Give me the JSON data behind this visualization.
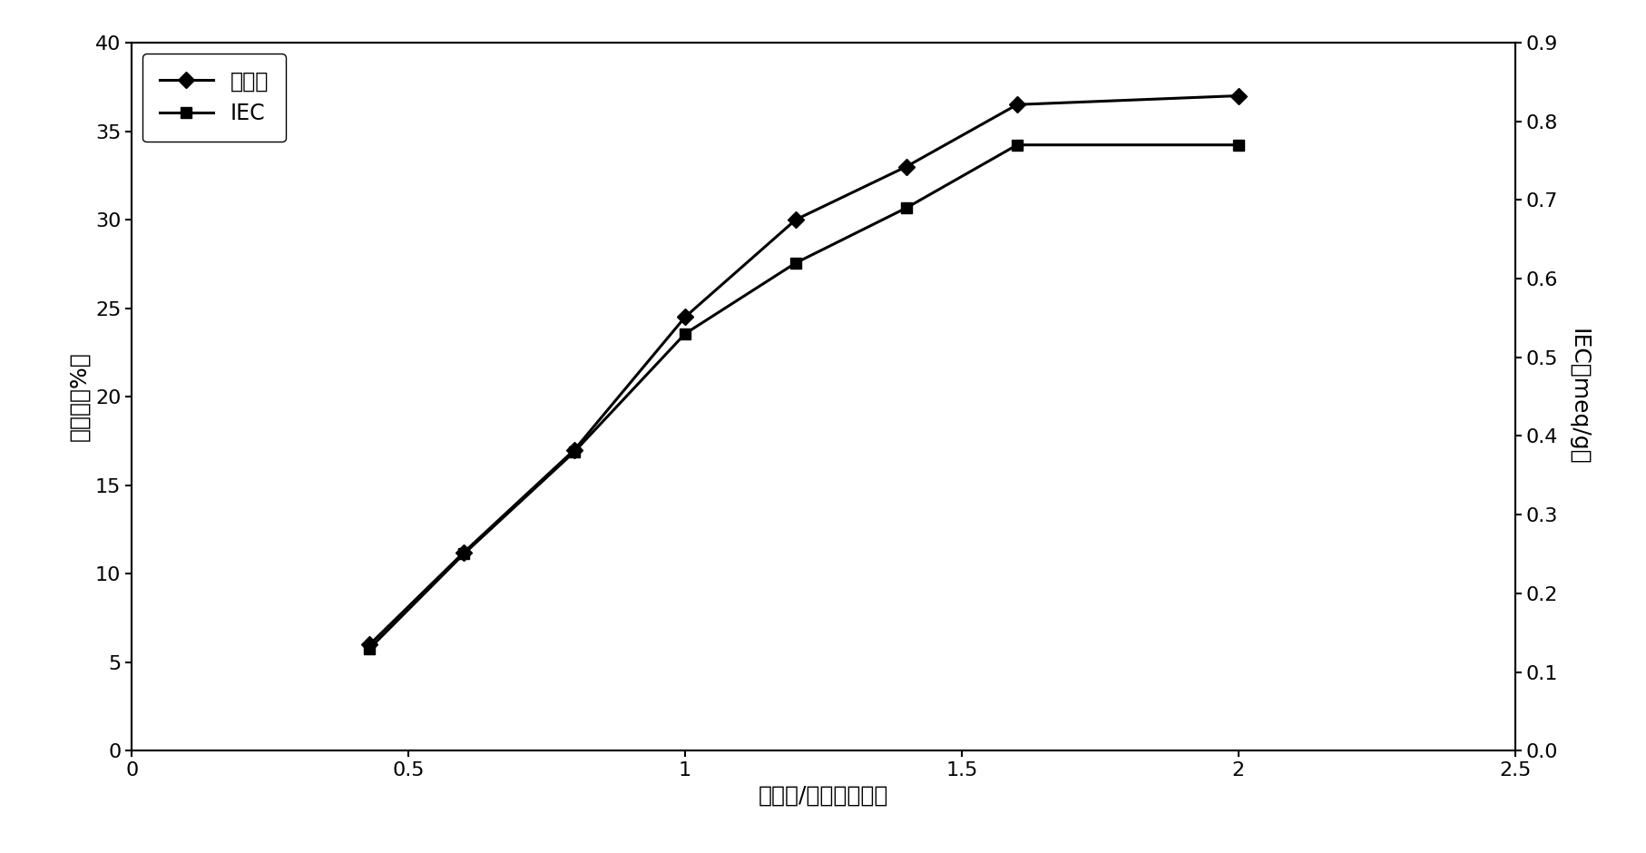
{
  "sulfonation_x": [
    0.43,
    0.6,
    0.8,
    1.0,
    1.2,
    1.4,
    1.6,
    2.0
  ],
  "sulfonation_y": [
    6.0,
    11.2,
    17.0,
    24.5,
    30.0,
    33.0,
    36.5,
    37.0
  ],
  "iec_x": [
    0.43,
    0.6,
    0.8,
    1.0,
    1.2,
    1.4,
    1.6,
    2.0
  ],
  "iec_y": [
    0.13,
    0.25,
    0.38,
    0.53,
    0.62,
    0.69,
    0.77,
    0.77
  ],
  "xlabel": "氯磺酸/聚醚睢摸尔比",
  "ylabel_left": "磺化度［%］",
  "ylabel_right": "IEC［meq/g］",
  "legend_sulfonation": "磺化度",
  "legend_iec": "IEC",
  "xlim": [
    0,
    2.5
  ],
  "ylim_left": [
    0,
    40
  ],
  "ylim_right": [
    0,
    0.9
  ],
  "xticks": [
    0,
    0.5,
    1.0,
    1.5,
    2.0,
    2.5
  ],
  "xticklabels": [
    "0",
    "0.5",
    "1",
    "1.5",
    "2",
    "2.5"
  ],
  "yticks_left": [
    0,
    5,
    10,
    15,
    20,
    25,
    30,
    35,
    40
  ],
  "yticks_right": [
    0,
    0.1,
    0.2,
    0.3,
    0.4,
    0.5,
    0.6,
    0.7,
    0.8,
    0.9
  ],
  "line_color": "#000000",
  "marker_sulfonation": "D",
  "marker_iec": "s",
  "marker_size": 9,
  "linewidth": 2.2,
  "bg_color": "#ffffff",
  "font_size_label": 18,
  "font_size_tick": 16,
  "font_size_legend": 17
}
